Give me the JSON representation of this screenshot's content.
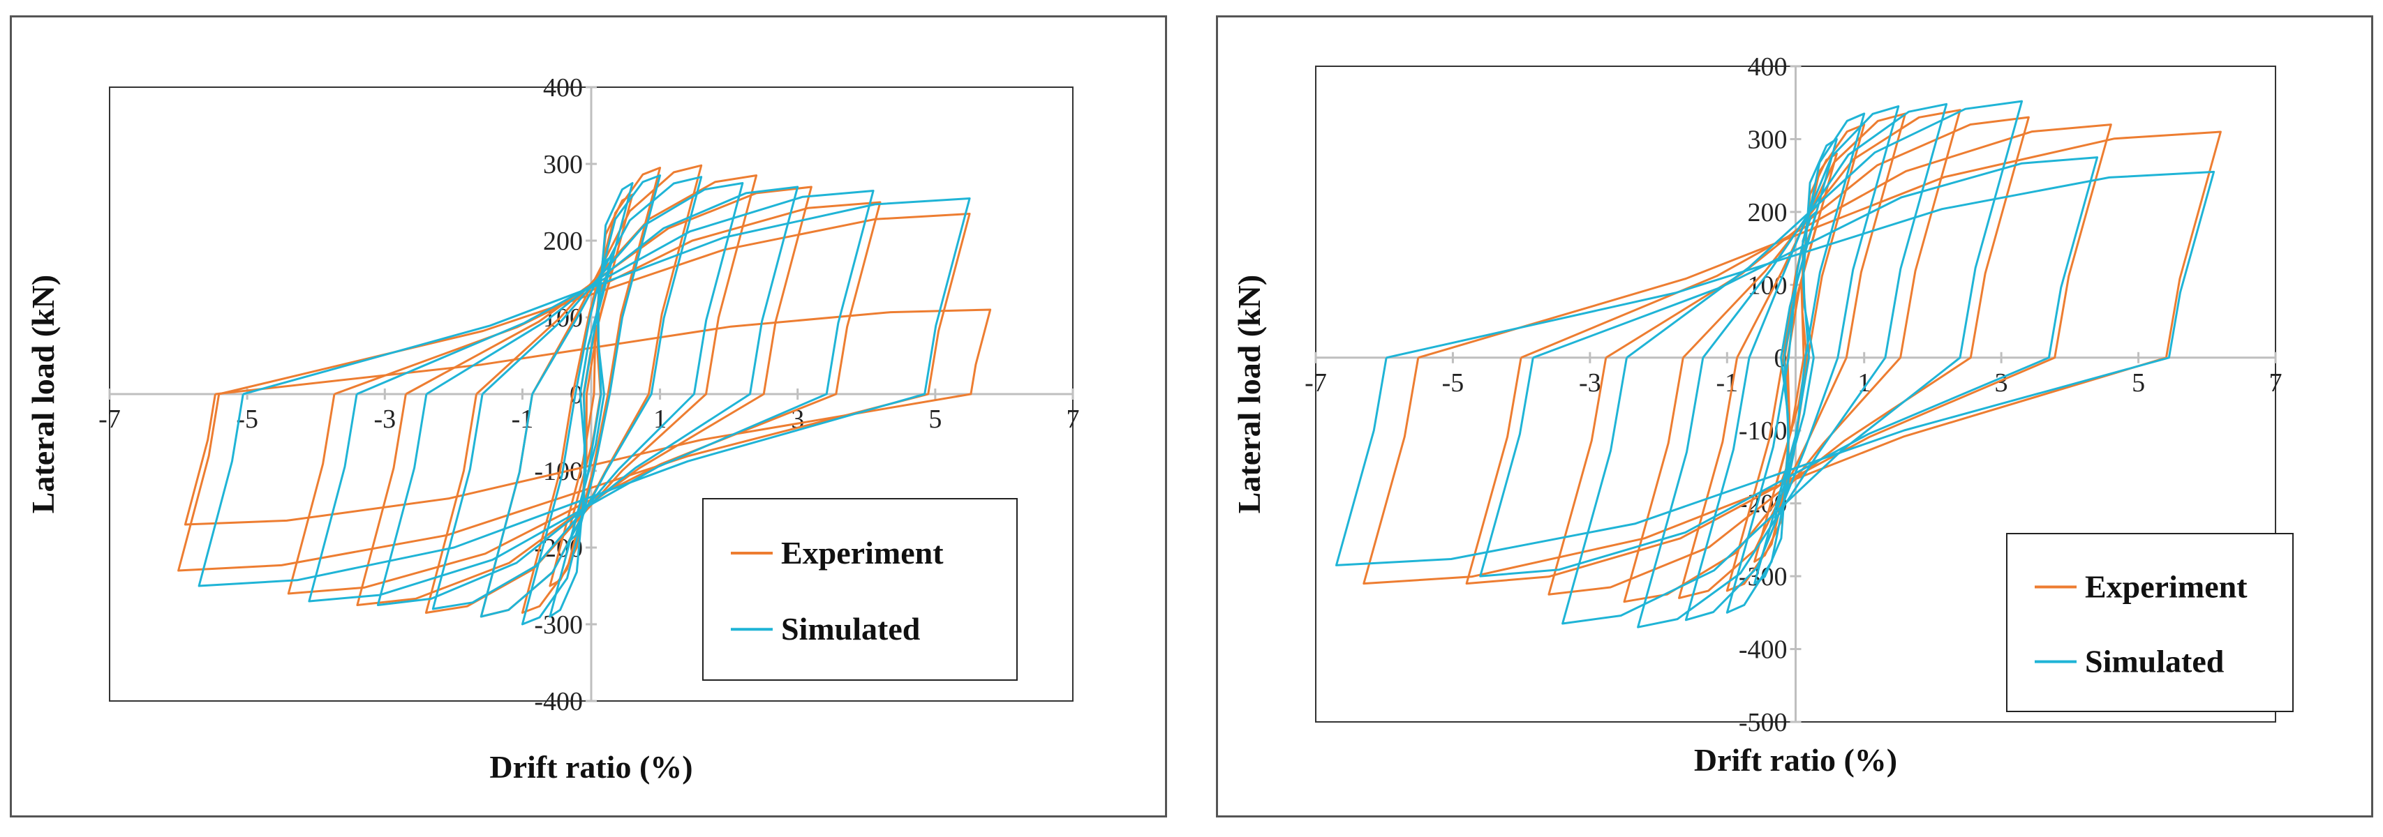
{
  "colors": {
    "experiment": "#ED7D31",
    "simulated": "#1FB4D6",
    "axis": "#bfbfbf",
    "frame": "#333333"
  },
  "chart_data": [
    {
      "type": "line",
      "title": "",
      "xlabel": "Drift ratio (%)",
      "ylabel": "Lateral load (kN)",
      "xlim": [
        -7,
        7
      ],
      "ylim": [
        -400,
        400
      ],
      "x_ticks": [
        "-7",
        "-5",
        "-3",
        "-1",
        "1",
        "3",
        "5",
        "7"
      ],
      "y_ticks": [
        "400",
        "300",
        "200",
        "100",
        "0",
        "-100",
        "-200",
        "-300",
        "-400"
      ],
      "legend": {
        "placement": "bottom-right",
        "entries": [
          "Experiment",
          "Simulated"
        ]
      },
      "series": [
        {
          "name": "Experiment",
          "color": "#ED7D31",
          "cycles": [
            {
              "xp": 0.3,
              "fp": 160,
              "xn": -0.3,
              "fn": -170
            },
            {
              "xp": 0.6,
              "fp": 260,
              "xn": -0.6,
              "fn": -250
            },
            {
              "xp": 1.0,
              "fp": 295,
              "xn": -1.0,
              "fn": -285
            },
            {
              "xp": 1.6,
              "fp": 298,
              "xn": -1.6,
              "fn": -290
            },
            {
              "xp": 2.4,
              "fp": 285,
              "xn": -2.4,
              "fn": -285
            },
            {
              "xp": 3.2,
              "fp": 270,
              "xn": -3.4,
              "fn": -275
            },
            {
              "xp": 4.2,
              "fp": 250,
              "xn": -4.4,
              "fn": -260
            },
            {
              "xp": 5.5,
              "fp": 235,
              "xn": -6.0,
              "fn": -230
            },
            {
              "xp": 5.8,
              "fp": 110,
              "xn": -5.9,
              "fn": -170
            }
          ]
        },
        {
          "name": "Simulated",
          "color": "#1FB4D6",
          "cycles": [
            {
              "xp": 0.3,
              "fp": 180,
              "xn": -0.3,
              "fn": -190
            },
            {
              "xp": 0.6,
              "fp": 275,
              "xn": -0.6,
              "fn": -290
            },
            {
              "xp": 1.0,
              "fp": 285,
              "xn": -1.0,
              "fn": -300
            },
            {
              "xp": 1.6,
              "fp": 283,
              "xn": -1.6,
              "fn": -290
            },
            {
              "xp": 2.2,
              "fp": 275,
              "xn": -2.3,
              "fn": -280
            },
            {
              "xp": 3.0,
              "fp": 270,
              "xn": -3.1,
              "fn": -275
            },
            {
              "xp": 4.1,
              "fp": 265,
              "xn": -4.1,
              "fn": -270
            },
            {
              "xp": 5.5,
              "fp": 255,
              "xn": -5.7,
              "fn": -250
            }
          ]
        }
      ]
    },
    {
      "type": "line",
      "title": "",
      "xlabel": "Drift ratio (%)",
      "ylabel": "Lateral load (kN)",
      "xlim": [
        -7,
        7
      ],
      "ylim": [
        -500,
        400
      ],
      "x_ticks": [
        "-7",
        "-5",
        "-3",
        "-1",
        "1",
        "3",
        "5",
        "7"
      ],
      "y_ticks": [
        "400",
        "300",
        "200",
        "100",
        "0",
        "-100",
        "-200",
        "-300",
        "-400",
        "-500"
      ],
      "legend": {
        "placement": "bottom-right",
        "entries": [
          "Experiment",
          "Simulated"
        ]
      },
      "series": [
        {
          "name": "Experiment",
          "color": "#ED7D31",
          "cycles": [
            {
              "xp": 0.3,
              "fp": 180,
              "xn": -0.3,
              "fn": -180
            },
            {
              "xp": 0.6,
              "fp": 280,
              "xn": -0.6,
              "fn": -280
            },
            {
              "xp": 1.0,
              "fp": 320,
              "xn": -1.0,
              "fn": -320
            },
            {
              "xp": 1.6,
              "fp": 335,
              "xn": -1.7,
              "fn": -330
            },
            {
              "xp": 2.4,
              "fp": 340,
              "xn": -2.5,
              "fn": -335
            },
            {
              "xp": 3.4,
              "fp": 330,
              "xn": -3.6,
              "fn": -325
            },
            {
              "xp": 4.6,
              "fp": 320,
              "xn": -4.8,
              "fn": -310
            },
            {
              "xp": 6.2,
              "fp": 310,
              "xn": -6.3,
              "fn": -310
            }
          ]
        },
        {
          "name": "Simulated",
          "color": "#1FB4D6",
          "cycles": [
            {
              "xp": 0.3,
              "fp": 200,
              "xn": -0.3,
              "fn": -220
            },
            {
              "xp": 0.6,
              "fp": 300,
              "xn": -0.6,
              "fn": -310
            },
            {
              "xp": 1.0,
              "fp": 335,
              "xn": -1.0,
              "fn": -350
            },
            {
              "xp": 1.5,
              "fp": 345,
              "xn": -1.6,
              "fn": -360
            },
            {
              "xp": 2.2,
              "fp": 348,
              "xn": -2.3,
              "fn": -370
            },
            {
              "xp": 3.3,
              "fp": 352,
              "xn": -3.4,
              "fn": -365
            },
            {
              "xp": 4.4,
              "fp": 275,
              "xn": -4.6,
              "fn": -300
            },
            {
              "xp": 6.1,
              "fp": 255,
              "xn": -6.7,
              "fn": -285
            }
          ]
        }
      ]
    }
  ]
}
